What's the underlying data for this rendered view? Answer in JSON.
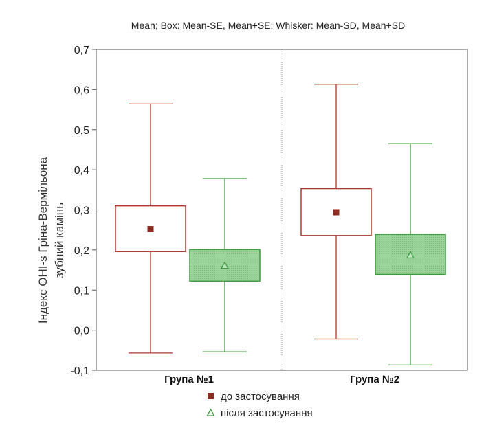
{
  "chart_data": {
    "type": "box",
    "title": "Mean; Box: Mean-SE, Mean+SE; Whisker: Mean-SD, Mean+SD",
    "ylabel_lines": [
      "Індекс OHI-s Гріна-Вермільона",
      "зубний камінь"
    ],
    "ylim": [
      -0.1,
      0.7
    ],
    "yticks": [
      -0.1,
      0.0,
      0.1,
      0.2,
      0.3,
      0.4,
      0.5,
      0.6,
      0.7
    ],
    "ytick_labels": [
      "-0,1",
      "0,0",
      "0,1",
      "0,2",
      "0,3",
      "0,4",
      "0,5",
      "0,6",
      "0,7"
    ],
    "categories": [
      "Група №1",
      "Група №2"
    ],
    "grid": "vertical-dotted-separator",
    "legend_position": "bottom",
    "series": [
      {
        "name": "до застосування",
        "color": "#b0392f",
        "marker": "square",
        "marker_color": "#8b2a1f",
        "fill": "#ffffff",
        "values": [
          {
            "mean": 0.252,
            "box_low": 0.196,
            "box_high": 0.31,
            "whisker_low": -0.057,
            "whisker_high": 0.564
          },
          {
            "mean": 0.294,
            "box_low": 0.236,
            "box_high": 0.353,
            "whisker_low": -0.022,
            "whisker_high": 0.613
          }
        ]
      },
      {
        "name": "після застосування",
        "color": "#3f9a3f",
        "marker": "triangle",
        "marker_color": "#3f9a3f",
        "fill": "#8fcf8f",
        "values": [
          {
            "mean": 0.161,
            "box_low": 0.122,
            "box_high": 0.201,
            "whisker_low": -0.054,
            "whisker_high": 0.378
          },
          {
            "mean": 0.187,
            "box_low": 0.139,
            "box_high": 0.239,
            "whisker_low": -0.087,
            "whisker_high": 0.465
          }
        ]
      }
    ]
  }
}
